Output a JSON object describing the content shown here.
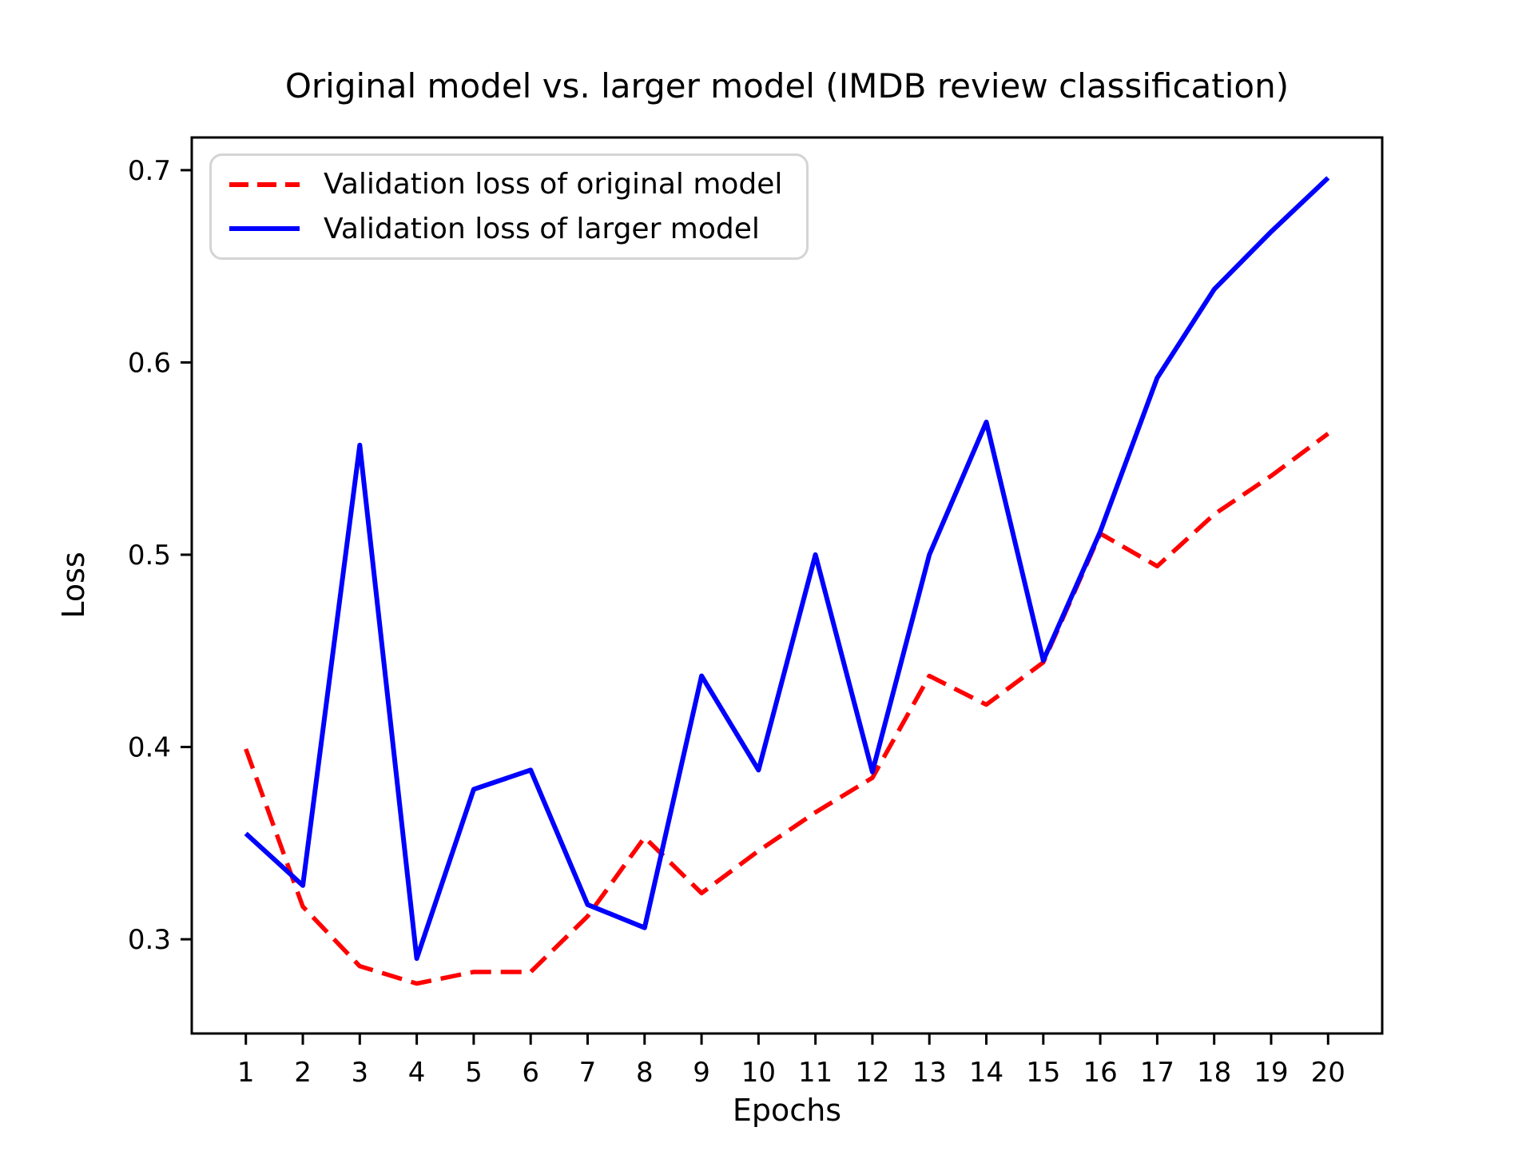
{
  "title": "Original model vs. larger model (IMDB review classification)",
  "chart_data": {
    "type": "line",
    "title": "Original model vs. larger model (IMDB review classification)",
    "xlabel": "Epochs",
    "ylabel": "Loss",
    "x": [
      1,
      2,
      3,
      4,
      5,
      6,
      7,
      8,
      9,
      10,
      11,
      12,
      13,
      14,
      15,
      16,
      17,
      18,
      19,
      20
    ],
    "xticks": [
      1,
      2,
      3,
      4,
      5,
      6,
      7,
      8,
      9,
      10,
      11,
      12,
      13,
      14,
      15,
      16,
      17,
      18,
      19,
      20
    ],
    "yticks": [
      0.3,
      0.4,
      0.5,
      0.6,
      0.7
    ],
    "ytick_labels": [
      "0.3",
      "0.4",
      "0.5",
      "0.6",
      "0.7"
    ],
    "xlim": [
      0.05,
      20.95
    ],
    "ylim": [
      0.251,
      0.717
    ],
    "grid": false,
    "legend_position": "upper left",
    "series": [
      {
        "name": "Validation loss of original model",
        "color": "#ff0000",
        "style": "dashed",
        "values": [
          0.399,
          0.317,
          0.286,
          0.277,
          0.283,
          0.283,
          0.312,
          0.353,
          0.324,
          0.346,
          0.366,
          0.384,
          0.437,
          0.422,
          0.444,
          0.511,
          0.494,
          0.521,
          0.541,
          0.563
        ]
      },
      {
        "name": "Validation loss of larger model",
        "color": "#0000ff",
        "style": "solid",
        "values": [
          0.355,
          0.328,
          0.557,
          0.29,
          0.378,
          0.388,
          0.318,
          0.306,
          0.437,
          0.388,
          0.5,
          0.387,
          0.5,
          0.569,
          0.445,
          0.512,
          0.592,
          0.638,
          0.668,
          0.696
        ]
      }
    ]
  }
}
